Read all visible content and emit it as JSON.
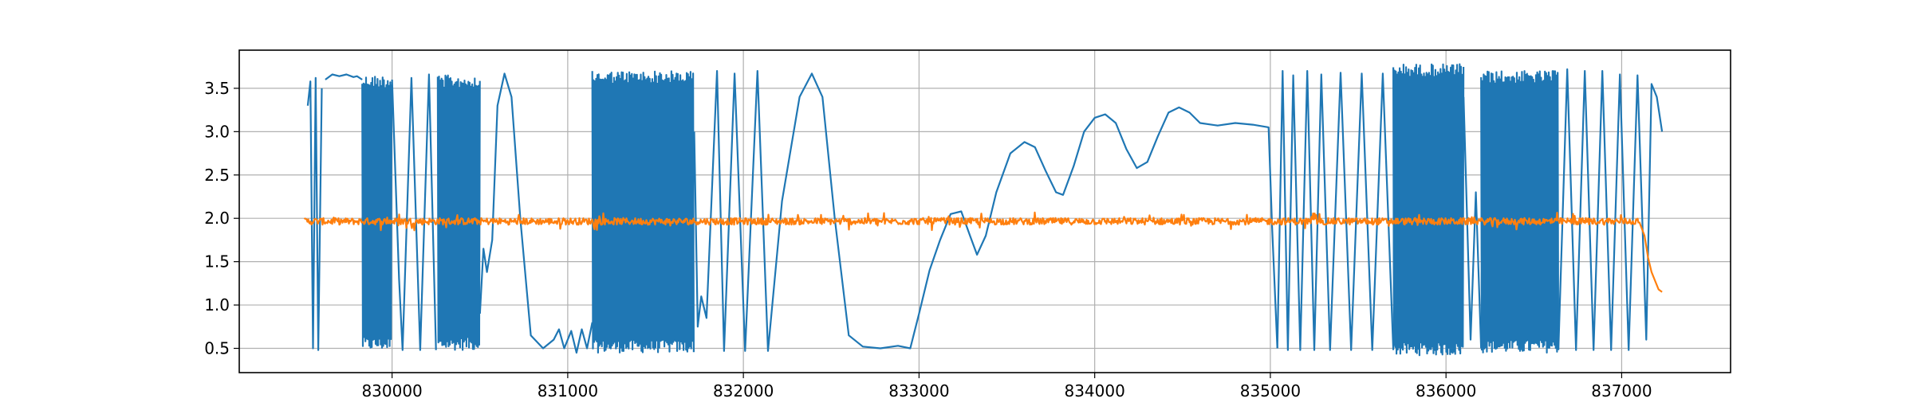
{
  "chart_data": {
    "type": "line",
    "title": "",
    "xlabel": "",
    "ylabel": "",
    "xlim": [
      829130,
      837620
    ],
    "ylim": [
      0.22,
      3.94
    ],
    "x_ticks": [
      830000,
      831000,
      832000,
      833000,
      834000,
      835000,
      836000,
      837000
    ],
    "x_tick_labels": [
      "830000",
      "831000",
      "832000",
      "833000",
      "834000",
      "835000",
      "836000",
      "837000"
    ],
    "y_ticks": [
      0.5,
      1.0,
      1.5,
      2.0,
      2.5,
      3.0,
      3.5
    ],
    "y_tick_labels": [
      "0.5",
      "1.0",
      "1.5",
      "2.0",
      "2.5",
      "3.0",
      "3.5"
    ],
    "grid": true,
    "legend": "none",
    "series": [
      {
        "color": "#1f77b4",
        "segments": [
          {
            "kind": "points",
            "points": [
              [
                829520,
                3.3
              ],
              [
                829535,
                3.58
              ],
              [
                829550,
                0.5
              ],
              [
                829565,
                3.62
              ],
              [
                829580,
                0.48
              ],
              [
                829600,
                3.5
              ]
            ]
          },
          {
            "kind": "points",
            "points": [
              [
                829620,
                3.6
              ],
              [
                829660,
                3.66
              ],
              [
                829700,
                3.64
              ],
              [
                829740,
                3.66
              ],
              [
                829780,
                3.63
              ],
              [
                829800,
                3.64
              ],
              [
                829830,
                3.6
              ]
            ]
          },
          {
            "kind": "band",
            "x0": 829830,
            "x1": 830000,
            "lo": 0.48,
            "hi": 3.65
          },
          {
            "kind": "points",
            "points": [
              [
                830000,
                3.6
              ],
              [
                830040,
                1.3
              ],
              [
                830060,
                0.48
              ],
              [
                830110,
                3.62
              ],
              [
                830160,
                0.48
              ],
              [
                830210,
                3.66
              ],
              [
                830250,
                0.48
              ]
            ]
          },
          {
            "kind": "band",
            "x0": 830260,
            "x1": 830500,
            "lo": 0.48,
            "hi": 3.65
          },
          {
            "kind": "points",
            "points": [
              [
                830500,
                0.9
              ],
              [
                830520,
                1.65
              ],
              [
                830540,
                1.38
              ],
              [
                830570,
                1.75
              ],
              [
                830600,
                3.3
              ],
              [
                830640,
                3.67
              ],
              [
                830680,
                3.4
              ],
              [
                830730,
                2.0
              ],
              [
                830790,
                0.65
              ],
              [
                830860,
                0.5
              ],
              [
                830920,
                0.6
              ],
              [
                830950,
                0.72
              ],
              [
                830980,
                0.5
              ],
              [
                831020,
                0.7
              ],
              [
                831050,
                0.45
              ],
              [
                831080,
                0.72
              ],
              [
                831110,
                0.5
              ],
              [
                831140,
                0.8
              ]
            ]
          },
          {
            "kind": "band",
            "x0": 831140,
            "x1": 831720,
            "lo": 0.45,
            "hi": 3.7
          },
          {
            "kind": "points",
            "points": [
              [
                831720,
                3.0
              ],
              [
                831740,
                0.75
              ],
              [
                831760,
                1.1
              ],
              [
                831790,
                0.85
              ],
              [
                831850,
                3.7
              ],
              [
                831890,
                0.47
              ],
              [
                831950,
                3.67
              ],
              [
                832010,
                0.47
              ],
              [
                832080,
                3.7
              ],
              [
                832140,
                0.47
              ],
              [
                832220,
                2.2
              ],
              [
                832320,
                3.4
              ],
              [
                832390,
                3.67
              ],
              [
                832450,
                3.4
              ],
              [
                832520,
                2.0
              ],
              [
                832600,
                0.65
              ],
              [
                832680,
                0.52
              ],
              [
                832780,
                0.5
              ],
              [
                832880,
                0.53
              ],
              [
                832950,
                0.5
              ],
              [
                833000,
                0.9
              ],
              [
                833060,
                1.4
              ],
              [
                833120,
                1.75
              ],
              [
                833180,
                2.05
              ],
              [
                833240,
                2.08
              ],
              [
                833290,
                1.8
              ],
              [
                833330,
                1.58
              ],
              [
                833380,
                1.8
              ],
              [
                833440,
                2.3
              ],
              [
                833520,
                2.75
              ],
              [
                833600,
                2.88
              ],
              [
                833660,
                2.82
              ],
              [
                833720,
                2.55
              ],
              [
                833780,
                2.3
              ],
              [
                833820,
                2.27
              ],
              [
                833880,
                2.6
              ],
              [
                833940,
                3.0
              ],
              [
                834000,
                3.16
              ],
              [
                834060,
                3.2
              ],
              [
                834120,
                3.1
              ],
              [
                834180,
                2.8
              ],
              [
                834240,
                2.58
              ],
              [
                834300,
                2.65
              ],
              [
                834360,
                2.95
              ],
              [
                834420,
                3.22
              ],
              [
                834480,
                3.28
              ],
              [
                834540,
                3.22
              ],
              [
                834600,
                3.1
              ],
              [
                834700,
                3.07
              ],
              [
                834800,
                3.1
              ],
              [
                834900,
                3.08
              ],
              [
                834990,
                3.05
              ],
              [
                835010,
                1.9
              ],
              [
                835040,
                0.5
              ]
            ]
          },
          {
            "kind": "points",
            "points": [
              [
                835040,
                0.5
              ],
              [
                835070,
                3.7
              ],
              [
                835100,
                0.48
              ],
              [
                835130,
                3.65
              ],
              [
                835170,
                0.48
              ],
              [
                835210,
                3.7
              ],
              [
                835250,
                0.48
              ],
              [
                835290,
                3.66
              ],
              [
                835340,
                0.48
              ],
              [
                835400,
                3.68
              ],
              [
                835460,
                0.48
              ],
              [
                835520,
                3.67
              ],
              [
                835580,
                0.48
              ],
              [
                835640,
                3.67
              ],
              [
                835700,
                0.48
              ]
            ]
          },
          {
            "kind": "band",
            "x0": 835700,
            "x1": 836100,
            "lo": 0.42,
            "hi": 3.78
          },
          {
            "kind": "points",
            "points": [
              [
                836100,
                3.4
              ],
              [
                836140,
                0.6
              ],
              [
                836170,
                2.3
              ],
              [
                836200,
                0.5
              ]
            ]
          },
          {
            "kind": "band",
            "x0": 836200,
            "x1": 836640,
            "lo": 0.45,
            "hi": 3.7
          },
          {
            "kind": "points",
            "points": [
              [
                836640,
                0.48
              ],
              [
                836690,
                3.72
              ],
              [
                836740,
                0.48
              ],
              [
                836790,
                3.7
              ],
              [
                836840,
                0.48
              ],
              [
                836890,
                3.7
              ],
              [
                836940,
                0.48
              ],
              [
                836990,
                3.66
              ],
              [
                837040,
                0.48
              ],
              [
                837090,
                3.65
              ],
              [
                837140,
                0.6
              ],
              [
                837170,
                3.55
              ],
              [
                837200,
                3.4
              ],
              [
                837230,
                3.0
              ]
            ]
          }
        ]
      },
      {
        "color": "#ff7f0e",
        "segments": [
          {
            "kind": "band",
            "x0": 829500,
            "x1": 837100,
            "lo": 1.9,
            "hi": 2.03
          },
          {
            "kind": "points",
            "points": [
              [
                837100,
                1.96
              ],
              [
                837130,
                1.8
              ],
              [
                837150,
                1.55
              ],
              [
                837170,
                1.38
              ],
              [
                837190,
                1.28
              ],
              [
                837210,
                1.18
              ],
              [
                837230,
                1.15
              ]
            ]
          }
        ]
      }
    ]
  }
}
